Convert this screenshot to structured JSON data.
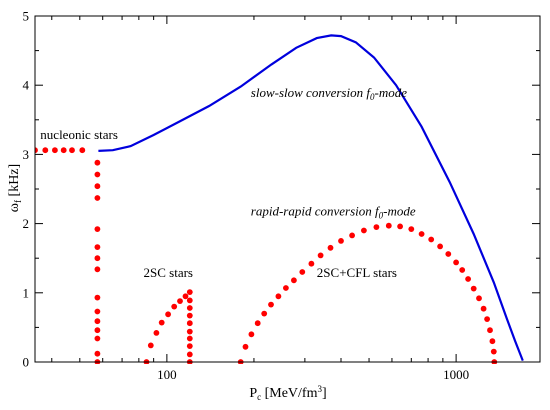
{
  "chart_data": {
    "type": "line",
    "xscale": "log",
    "xlim": [
      35,
      1950
    ],
    "ylim": [
      0,
      5
    ],
    "xlabel": {
      "main": "P",
      "sub": "c",
      "units": " [MeV/fm",
      "sup": "3",
      "close": "]"
    },
    "ylabel": {
      "main": "ω",
      "sub": "f",
      "units": " [kHz]"
    },
    "x_ticks": [
      {
        "value": 100,
        "label": "100"
      },
      {
        "value": 1000,
        "label": "1000"
      }
    ],
    "y_ticks": [
      {
        "value": 0,
        "label": "0"
      },
      {
        "value": 1,
        "label": "1"
      },
      {
        "value": 2,
        "label": "2"
      },
      {
        "value": 3,
        "label": "3"
      },
      {
        "value": 4,
        "label": "4"
      },
      {
        "value": 5,
        "label": "5"
      }
    ],
    "grid": false,
    "series": [
      {
        "style": "line",
        "color": "#0000dd",
        "x": [
          58,
          65,
          75,
          90,
          110,
          140,
          180,
          230,
          280,
          330,
          370,
          400,
          450,
          520,
          620,
          760,
          950,
          1150,
          1350,
          1500,
          1600,
          1660,
          1700
        ],
        "y": [
          3.05,
          3.06,
          3.12,
          3.28,
          3.47,
          3.7,
          3.98,
          4.3,
          4.54,
          4.68,
          4.72,
          4.71,
          4.62,
          4.4,
          4.0,
          3.4,
          2.6,
          1.85,
          1.15,
          0.62,
          0.3,
          0.13,
          0.02
        ]
      },
      {
        "style": "points",
        "color": "#ff0000",
        "x": [
          35,
          38,
          41,
          44,
          47,
          51,
          57.5,
          57.5,
          57.5,
          57.5,
          57.5,
          57.5,
          57.5,
          57.5,
          57.5,
          57.5,
          57.5,
          57.5,
          57.5,
          57.5,
          57.5
        ],
        "y": [
          3.06,
          3.06,
          3.06,
          3.06,
          3.06,
          3.06,
          2.88,
          2.71,
          2.54,
          2.37,
          1.92,
          1.66,
          1.5,
          1.34,
          0.93,
          0.73,
          0.59,
          0.46,
          0.34,
          0.12,
          0.0
        ]
      },
      {
        "style": "points",
        "color": "#ff0000",
        "x": [
          85,
          88,
          92,
          96,
          101,
          106,
          111,
          116,
          120,
          120,
          120,
          120,
          120,
          120,
          120,
          120,
          120,
          120
        ],
        "y": [
          0.0,
          0.24,
          0.42,
          0.57,
          0.69,
          0.8,
          0.88,
          0.95,
          1.01,
          0.89,
          0.78,
          0.67,
          0.56,
          0.44,
          0.34,
          0.23,
          0.11,
          0.0
        ]
      },
      {
        "style": "points",
        "color": "#ff0000",
        "x": [
          180,
          187,
          196,
          206,
          217,
          229,
          243,
          258,
          275,
          294,
          316,
          340,
          368,
          400,
          437,
          480,
          530,
          585,
          640,
          700,
          760,
          820,
          880,
          940,
          1000,
          1050,
          1100,
          1150,
          1200,
          1245,
          1280,
          1310,
          1335,
          1350,
          1355
        ],
        "y": [
          0.0,
          0.22,
          0.4,
          0.56,
          0.7,
          0.83,
          0.95,
          1.07,
          1.18,
          1.3,
          1.42,
          1.54,
          1.65,
          1.75,
          1.83,
          1.9,
          1.95,
          1.97,
          1.96,
          1.92,
          1.85,
          1.77,
          1.67,
          1.56,
          1.44,
          1.33,
          1.2,
          1.06,
          0.92,
          0.77,
          0.62,
          0.46,
          0.3,
          0.15,
          0.0
        ]
      }
    ],
    "annotations": [
      {
        "text": "nucleonic stars",
        "x": 36.5,
        "y": 3.22,
        "italic": false
      },
      {
        "text": "2SC stars",
        "x": 83,
        "y": 1.23,
        "italic": false
      },
      {
        "text": "2SC+CFL stars",
        "x": 330,
        "y": 1.23,
        "italic": false
      },
      {
        "text": "slow-slow conversion ",
        "text_main": "f",
        "text_sub": "0",
        "text_tail": "-mode",
        "x": 195,
        "y": 3.83,
        "italic": true
      },
      {
        "text": "rapid-rapid conversion ",
        "text_main": "f",
        "text_sub": "0",
        "text_tail": "-mode",
        "x": 195,
        "y": 2.12,
        "italic": true
      }
    ]
  }
}
